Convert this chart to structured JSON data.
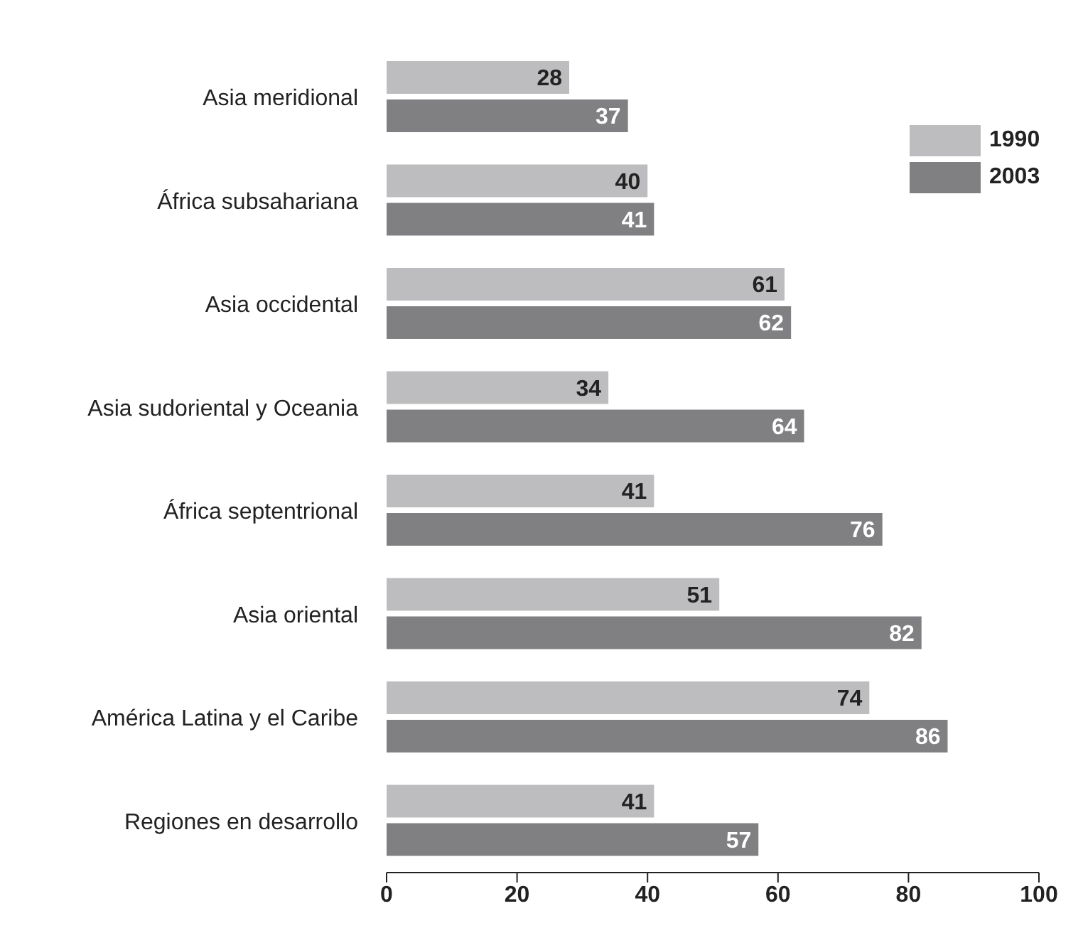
{
  "chart_data": {
    "type": "bar",
    "orientation": "horizontal",
    "categories": [
      "Asia meridional",
      "África subsahariana",
      "Asia occidental",
      "Asia sudoriental y Oceania",
      "África septentrional",
      "Asia oriental",
      "América Latina y el Caribe",
      "Regiones en desarrollo"
    ],
    "series": [
      {
        "name": "1990",
        "color": "#bdbdbf",
        "values": [
          28,
          40,
          61,
          34,
          41,
          51,
          74,
          41
        ]
      },
      {
        "name": "2003",
        "color": "#808083",
        "values": [
          37,
          41,
          62,
          64,
          76,
          82,
          86,
          57
        ]
      }
    ],
    "xlim": [
      0,
      100
    ],
    "xticks": [
      0,
      20,
      40,
      60,
      80,
      100
    ],
    "data_labels": true,
    "legend": "top right",
    "grid": false
  }
}
